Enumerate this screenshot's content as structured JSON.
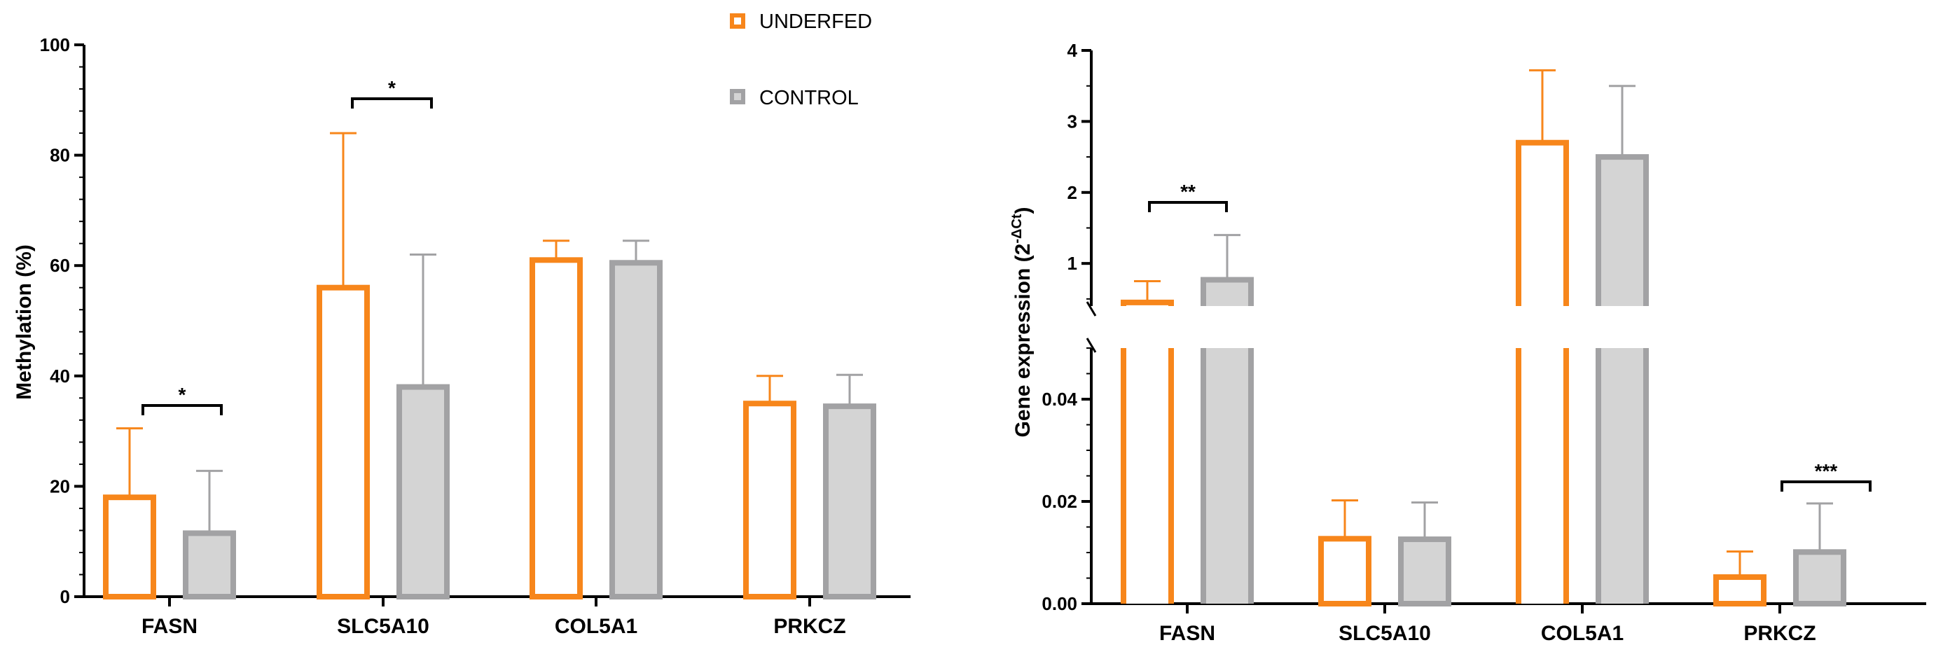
{
  "colors": {
    "underfed": "#F7861B",
    "control": "#A2A2A4",
    "control_fill": "#D4D4D4",
    "axis": "#000000"
  },
  "legend": {
    "underfed_label": "UNDERFED",
    "control_label": "CONTROL"
  },
  "chart_data": [
    {
      "type": "bar",
      "title": "",
      "xlabel": "",
      "ylabel": "Methylation (%)",
      "ylim": [
        0,
        100
      ],
      "yticks": [
        0,
        20,
        40,
        60,
        80,
        100
      ],
      "categories": [
        "FASN",
        "SLC5A10",
        "COL5A1",
        "PRKCZ"
      ],
      "series": [
        {
          "name": "UNDERFED",
          "values": [
            18,
            56,
            61,
            35
          ],
          "errors": [
            12.5,
            28,
            3.5,
            5
          ]
        },
        {
          "name": "CONTROL",
          "values": [
            11.5,
            38,
            60.5,
            34.5
          ],
          "errors": [
            11.3,
            24,
            4,
            5.7
          ]
        }
      ],
      "significance": [
        {
          "category": "FASN",
          "label": "*"
        },
        {
          "category": "SLC5A10",
          "label": "*"
        }
      ]
    },
    {
      "type": "bar",
      "title": "",
      "xlabel": "",
      "ylabel_main": "Gene expression (2",
      "ylabel_sup": "-ΔCt",
      "ylabel_close": ")",
      "broken_axis": true,
      "lower_ylim": [
        0,
        0.05
      ],
      "upper_ylim": [
        0.4,
        4
      ],
      "lower_yticks": [
        "0.00",
        "0.02",
        "0.04"
      ],
      "upper_yticks": [
        "1",
        "2",
        "3",
        "4"
      ],
      "categories": [
        "FASN",
        "SLC5A10",
        "COL5A1",
        "PRKCZ"
      ],
      "series": [
        {
          "name": "UNDERFED",
          "values": [
            0.45,
            0.0127,
            2.7,
            0.0052
          ],
          "errors": [
            0.3,
            0.0075,
            1.02,
            0.005
          ]
        },
        {
          "name": "CONTROL",
          "values": [
            0.77,
            0.0126,
            2.5,
            0.0101
          ],
          "errors": [
            0.63,
            0.0072,
            1.0,
            0.0095
          ]
        }
      ],
      "significance": [
        {
          "category": "FASN",
          "label": "**"
        },
        {
          "category": "PRKCZ",
          "label": "***"
        }
      ]
    }
  ]
}
